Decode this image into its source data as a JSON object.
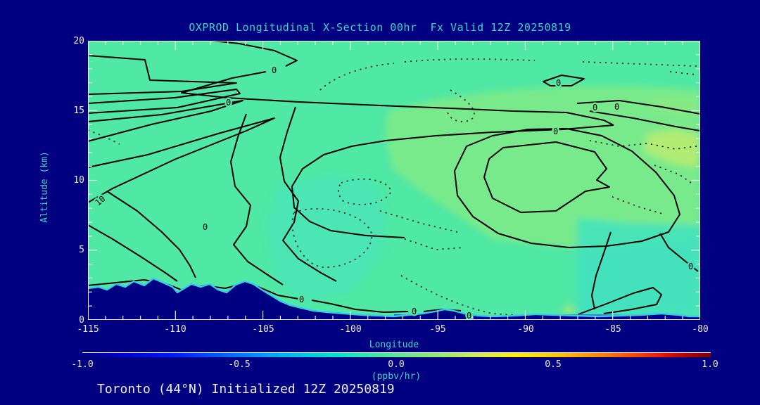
{
  "title": "OXPROD Longitudinal X-Section 00hr  Fx Valid 12Z 20250819",
  "footer": "Toronto (44°N) Initialized 12Z 20250819",
  "axes": {
    "y": {
      "label": "Altitude (km)",
      "ticks": [
        "20",
        "15",
        "10",
        "5",
        "0"
      ]
    },
    "x": {
      "label": "Longitude",
      "ticks": [
        "-115",
        "-110",
        "-105",
        "-100",
        "-95",
        "-90",
        "-85",
        "-80"
      ]
    }
  },
  "colorbar": {
    "ticks": [
      "-1.0",
      "-0.5",
      "0.0",
      "0.5",
      "1.0"
    ],
    "units": "(ppbv/hr)"
  },
  "plot": {
    "contour_labels": {
      "zero": "0",
      "ten": "10"
    }
  },
  "colors": {
    "background": "#000080",
    "heading_teal": "#35D8C0",
    "tick_text": "#ECECEC",
    "field_base_green": "#4FE8A5",
    "field_yellow_green": "#79EA8B",
    "field_bright_green": "#B4EC74",
    "field_cyan_tint": "#42E2C0",
    "terrain_fringe_cyan": "#38C8F0",
    "terrain_fringe_blue": "#2B50E6",
    "contour_line": "#000000"
  },
  "chart_data": {
    "type": "heatmap",
    "subtype": "filled-contour longitude-height cross-section",
    "title": "OXPROD Longitudinal X-Section 00hr  Fx Valid 12Z 20250819",
    "station": "Toronto (44°N)",
    "initialized": "12Z 20250819",
    "forecast_hour": "00hr",
    "valid": "12Z 20250819",
    "xlabel": "Longitude",
    "ylabel": "Altitude (km)",
    "xlim": [
      -115,
      -80
    ],
    "ylim": [
      0,
      20
    ],
    "x_major_ticks": [
      -115,
      -110,
      -105,
      -100,
      -95,
      -90,
      -85,
      -80
    ],
    "y_major_ticks": [
      0,
      5,
      10,
      15,
      20
    ],
    "colorbar": {
      "label": "(ppbv/hr)",
      "range": [
        -1.0,
        1.0
      ],
      "ticks": [
        -1.0,
        -0.5,
        0.0,
        0.5,
        1.0
      ],
      "palette": "blue-cyan-green-yellow-red rainbow"
    },
    "field_summary": "OXPROD near 0 ppbv/hr almost everywhere; weakly positive (~+0.05 to +0.1) broad region 6-16 km east of about -97 centered near -90 at 8-14 km; slightly brighter maximum near -82, 10-12 km; weakly negative pockets (dotted contours) in mid-levels and near surface east of -103",
    "labeled_contour_level": 0,
    "solid_contours": "0 contour and positive wiggly contours clustered west of -97 between 6 and 20 km, closed 0 contour ring near -90 at 8-14 km",
    "dotted_contours": "negative values: fragments near tropopause 17-19 km, mid-level loops near -99 to -95 at 4-9 km, lower-right descent to surface",
    "terrain_profile_km": {
      "x": [
        -115,
        -112,
        -110,
        -108.5,
        -107,
        -105.5,
        -104,
        -102.5,
        -101,
        -99,
        -96,
        -93,
        -90,
        -87,
        -84,
        -81,
        -80
      ],
      "surface": [
        2.3,
        2.6,
        2.1,
        2.5,
        2.2,
        1.7,
        1.2,
        0.9,
        0.5,
        0.3,
        0.35,
        0.3,
        0.3,
        0.3,
        0.35,
        0.3,
        0.25
      ]
    }
  }
}
